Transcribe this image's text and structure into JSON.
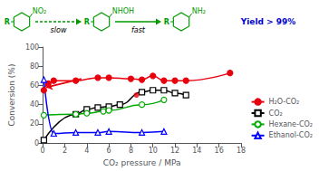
{
  "chart_data": {
    "type": "line",
    "title": "",
    "xlabel": "CO₂ pressure / MPa",
    "ylabel": "Conversion (%)",
    "xlim": [
      0,
      18
    ],
    "ylim": [
      0,
      100
    ],
    "xticks": [
      0,
      2,
      4,
      6,
      8,
      10,
      12,
      14,
      16,
      18
    ],
    "yticks": [
      0,
      20,
      40,
      60,
      80,
      100
    ],
    "grid": false,
    "legend": "lower right",
    "series": [
      {
        "name": "H₂O-CO₂",
        "color": "#e8000d",
        "marker": "filled_circle",
        "line_style": "solid",
        "x": [
          0.1,
          0.5,
          1.0,
          3.0,
          5.0,
          6.0,
          8.0,
          9.0,
          10.0,
          11.0,
          12.0,
          13.0,
          17.0
        ],
        "values": [
          55,
          62,
          65,
          65,
          68,
          68,
          67,
          66,
          70,
          65,
          65,
          65,
          73
        ]
      },
      {
        "name": "CO₂",
        "color": "#000000",
        "marker": "open_square",
        "line_style": "solid",
        "x": [
          0.1,
          3.0,
          4.0,
          5.0,
          6.0,
          7.0,
          9.0,
          10.0,
          11.0,
          12.0,
          13.0
        ],
        "values": [
          3,
          30,
          35,
          37,
          38,
          40,
          53,
          55,
          55,
          52,
          50
        ]
      },
      {
        "name": "Hexane-CO₂",
        "color": "#00aa00",
        "marker": "open_circle",
        "line_style": "solid",
        "x": [
          0.1,
          3.0,
          4.0,
          5.5,
          6.0,
          9.0,
          11.0
        ],
        "values": [
          29,
          30,
          31,
          33,
          34,
          40,
          45
        ]
      },
      {
        "name": "Ethanol-CO₂",
        "color": "#0000ff",
        "marker": "open_triangle",
        "line_style": "solid",
        "x": [
          0.1,
          1.0,
          3.0,
          5.0,
          6.0,
          9.0,
          11.0
        ],
        "values": [
          66,
          10,
          11,
          11,
          12,
          11,
          12
        ]
      }
    ],
    "annotations": [
      {
        "type": "arrow",
        "x": 3.5,
        "y": 67,
        "x_end": 0.3,
        "y_end": 58,
        "color": "#e8000d"
      },
      {
        "type": "point",
        "x": 8.5,
        "y": 50,
        "color": "#e8000d"
      },
      {
        "type": "scheme",
        "substituent": "R",
        "groups": [
          "NO₂",
          "NHOH",
          "NH₂"
        ],
        "steps": [
          {
            "text": "slow",
            "line_style": "dashed"
          },
          {
            "text": "fast",
            "line_style": "solid"
          }
        ],
        "color": "#009900"
      },
      {
        "type": "text",
        "text": "Yield > 99%",
        "color": "#0000cc"
      }
    ]
  }
}
